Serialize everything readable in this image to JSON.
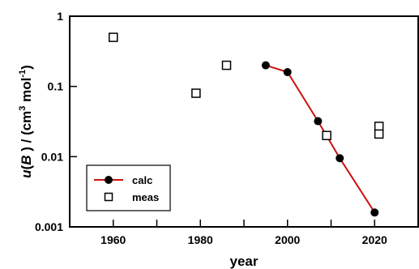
{
  "chart_data": {
    "type": "scatter",
    "xlabel": "year",
    "ylabel_parts": {
      "u": "u",
      "paren_open": "(",
      "b": "B",
      "paren_close": " ) / (cm",
      "cube": "3",
      "mol": " mol",
      "minus_one": "-1",
      "close": ")"
    },
    "xlim": [
      1950,
      2030
    ],
    "ylim": [
      0.001,
      1
    ],
    "yscale": "log",
    "x_ticks": [
      1960,
      1980,
      2000,
      2020
    ],
    "x_tick_labels": [
      "1960",
      "1980",
      "2000",
      "2020"
    ],
    "y_ticks": [
      0.001,
      0.01,
      0.1,
      1
    ],
    "y_tick_labels": [
      "0.001",
      "0.01",
      "0.1",
      "1"
    ],
    "legend_position": "bottom-left",
    "series": [
      {
        "name": "calc",
        "marker": "filled-circle",
        "line": true,
        "line_color": "#cc1111",
        "marker_color": "#000000",
        "points": [
          {
            "x": 1995,
            "y": 0.2
          },
          {
            "x": 2000,
            "y": 0.16
          },
          {
            "x": 2007,
            "y": 0.032
          },
          {
            "x": 2012,
            "y": 0.0095
          },
          {
            "x": 2020,
            "y": 0.0016
          }
        ]
      },
      {
        "name": "meas",
        "marker": "open-square",
        "line": false,
        "marker_color": "#000000",
        "points": [
          {
            "x": 1960,
            "y": 0.5
          },
          {
            "x": 1979,
            "y": 0.08
          },
          {
            "x": 1986,
            "y": 0.2
          },
          {
            "x": 2009,
            "y": 0.02
          },
          {
            "x": 2021,
            "y": 0.027
          },
          {
            "x": 2021,
            "y": 0.021
          }
        ]
      }
    ]
  }
}
